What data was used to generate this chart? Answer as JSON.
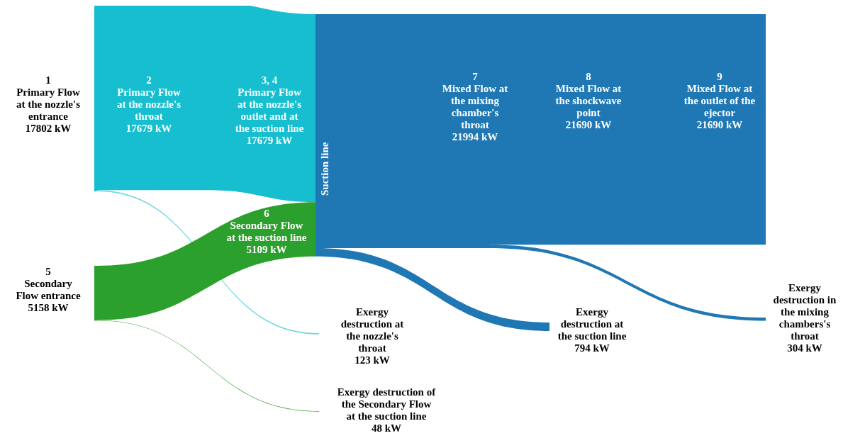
{
  "chart_data": {
    "type": "other",
    "categories": [
      "1\nPrimary Flow\nat the nozzle's\nentrance",
      "2\nPrimary Flow\nat the nozzle's\nthroat",
      "3, 4\nPrimary Flow\nat the nozzle's\noutlet and at\nthe suction line",
      "5\nSecondary\nFlow entrance",
      "6\nSecondary Flow\nat the suction line",
      "7\nMixed Flow at\nthe mixing\nchamber's\nthroat",
      "8\nMixed Flow at\nthe shockwave\npoint",
      "9\nMixed Flow at\nthe outlet of the\nejector",
      "Exergy\ndestruction at\nthe nozzle's\nthroat",
      "Exergy destruction of\nthe Secondary Flow\nat the suction line",
      "Exergy\ndestruction at\nthe suction line",
      "Exergy\ndestruction in\nthe mixing\nchambers's\nthroat"
    ],
    "values": [
      17802,
      17679,
      17679,
      5158,
      5109,
      21994,
      21690,
      21690,
      123,
      48,
      794,
      304
    ],
    "value_labels": [
      "17802 kW",
      "17679 kW",
      "17679 kW",
      "5158 kW",
      "5109 kW",
      "21994 kW",
      "21690 kW",
      "21690 kW",
      "123 kW",
      "48 kW",
      "794 kW",
      "304 kW"
    ],
    "colors": [
      "#17becf",
      "#17becf",
      "#17becf",
      "#2ca02c",
      "#2ca02c",
      "#1f77b4",
      "#1f77b4",
      "#1f77b4",
      "#6fd6e2",
      "#2ca02c",
      "#1f77b4",
      "#1f77b4"
    ],
    "annotations": [
      "Suction line"
    ]
  }
}
